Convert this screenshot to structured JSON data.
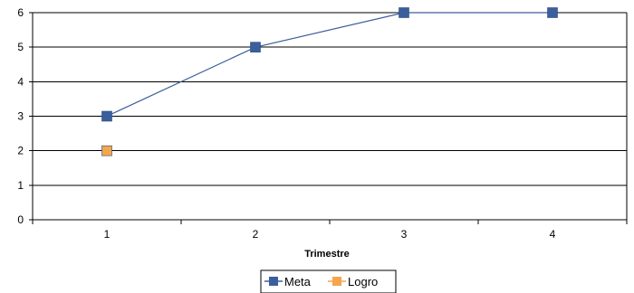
{
  "chart_data": {
    "type": "line",
    "categories": [
      "1",
      "2",
      "3",
      "4"
    ],
    "xlabel": "Trimestre",
    "ylabel": "",
    "ylim": [
      0,
      6
    ],
    "yticks": [
      "0",
      "1",
      "2",
      "3",
      "4",
      "5",
      "6"
    ],
    "grid": true,
    "legend_position": "bottom",
    "series": [
      {
        "name": "Meta",
        "values": [
          3,
          5,
          6,
          6
        ],
        "color": "#3a5f9c",
        "marker": "square",
        "line": true
      },
      {
        "name": "Logro",
        "values": [
          2,
          null,
          null,
          null
        ],
        "color": "#f4a64a",
        "marker": "square",
        "line": true
      }
    ]
  }
}
